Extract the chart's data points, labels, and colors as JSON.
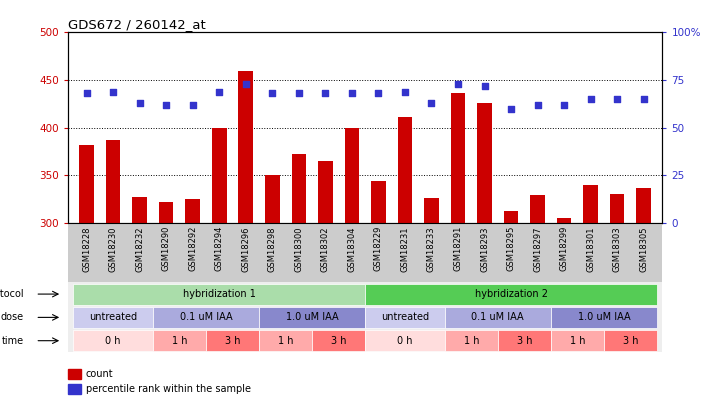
{
  "title": "GDS672 / 260142_at",
  "samples": [
    "GSM18228",
    "GSM18230",
    "GSM18232",
    "GSM18290",
    "GSM18292",
    "GSM18294",
    "GSM18296",
    "GSM18298",
    "GSM18300",
    "GSM18302",
    "GSM18304",
    "GSM18229",
    "GSM18231",
    "GSM18233",
    "GSM18291",
    "GSM18293",
    "GSM18295",
    "GSM18297",
    "GSM18299",
    "GSM18301",
    "GSM18303",
    "GSM18305"
  ],
  "count_values": [
    382,
    387,
    327,
    322,
    325,
    400,
    460,
    350,
    372,
    365,
    400,
    344,
    411,
    326,
    436,
    426,
    313,
    329,
    305,
    340,
    330,
    337
  ],
  "percentile_values": [
    68,
    69,
    63,
    62,
    62,
    69,
    73,
    68,
    68,
    68,
    68,
    68,
    69,
    63,
    73,
    72,
    60,
    62,
    62,
    65,
    65,
    65
  ],
  "ylim_left": [
    300,
    500
  ],
  "ylim_right": [
    0,
    100
  ],
  "yticks_left": [
    300,
    350,
    400,
    450,
    500
  ],
  "yticks_right": [
    0,
    25,
    50,
    75,
    100
  ],
  "bar_color": "#cc0000",
  "dot_color": "#3333cc",
  "grid_color": "#000000",
  "protocol_row": [
    {
      "label": "hybridization 1",
      "start": 0,
      "end": 11,
      "color": "#aaddaa"
    },
    {
      "label": "hybridization 2",
      "start": 11,
      "end": 22,
      "color": "#55cc55"
    }
  ],
  "dose_row": [
    {
      "label": "untreated",
      "start": 0,
      "end": 3,
      "color": "#ccccee"
    },
    {
      "label": "0.1 uM IAA",
      "start": 3,
      "end": 7,
      "color": "#aaaadd"
    },
    {
      "label": "1.0 uM IAA",
      "start": 7,
      "end": 11,
      "color": "#8888cc"
    },
    {
      "label": "untreated",
      "start": 11,
      "end": 14,
      "color": "#ccccee"
    },
    {
      "label": "0.1 uM IAA",
      "start": 14,
      "end": 18,
      "color": "#aaaadd"
    },
    {
      "label": "1.0 uM IAA",
      "start": 18,
      "end": 22,
      "color": "#8888cc"
    }
  ],
  "time_row": [
    {
      "label": "0 h",
      "start": 0,
      "end": 3,
      "color": "#ffdddd"
    },
    {
      "label": "1 h",
      "start": 3,
      "end": 5,
      "color": "#ffaaaa"
    },
    {
      "label": "3 h",
      "start": 5,
      "end": 7,
      "color": "#ff7777"
    },
    {
      "label": "1 h",
      "start": 7,
      "end": 9,
      "color": "#ffaaaa"
    },
    {
      "label": "3 h",
      "start": 9,
      "end": 11,
      "color": "#ff7777"
    },
    {
      "label": "0 h",
      "start": 11,
      "end": 14,
      "color": "#ffdddd"
    },
    {
      "label": "1 h",
      "start": 14,
      "end": 16,
      "color": "#ffaaaa"
    },
    {
      "label": "3 h",
      "start": 16,
      "end": 18,
      "color": "#ff7777"
    },
    {
      "label": "1 h",
      "start": 18,
      "end": 20,
      "color": "#ffaaaa"
    },
    {
      "label": "3 h",
      "start": 20,
      "end": 22,
      "color": "#ff7777"
    }
  ],
  "legend_items": [
    {
      "label": "count",
      "color": "#cc0000"
    },
    {
      "label": "percentile rank within the sample",
      "color": "#3333cc"
    }
  ],
  "row_labels": [
    "protocol",
    "dose",
    "time"
  ],
  "axis_label_color_left": "#cc0000",
  "axis_label_color_right": "#3333cc",
  "bg_color": "#ffffff",
  "plot_bg_color": "#ffffff",
  "tick_label_bg": "#cccccc",
  "xticklabel_area_color": "#cccccc"
}
